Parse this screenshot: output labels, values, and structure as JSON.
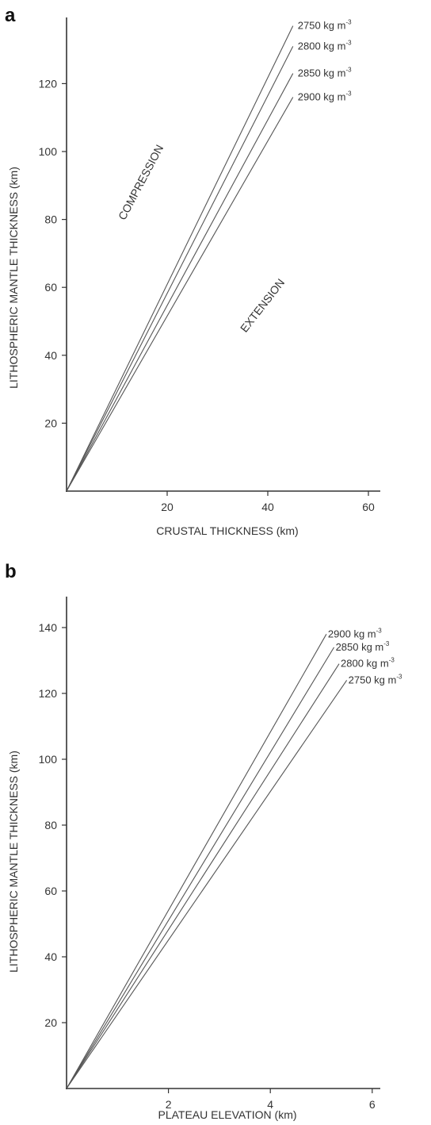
{
  "chart_data": [
    {
      "panel": "a",
      "type": "line",
      "xlabel": "CRUSTAL THICKNESS (km)",
      "ylabel": "LITHOSPHERIC MANTLE THICKNESS (km)",
      "xlim": [
        0,
        60
      ],
      "ylim": [
        0,
        140
      ],
      "xticks": [
        20,
        40,
        60
      ],
      "yticks": [
        20,
        40,
        60,
        80,
        100,
        120
      ],
      "annotations": [
        "COMPRESSION",
        "EXTENSION"
      ],
      "series": [
        {
          "name": "2750 kg m",
          "superscript": "-3",
          "x": [
            0,
            45
          ],
          "y": [
            0,
            137
          ]
        },
        {
          "name": "2800 kg m",
          "superscript": "-3",
          "x": [
            0,
            45
          ],
          "y": [
            0,
            131
          ]
        },
        {
          "name": "2850 kg m",
          "superscript": "-3",
          "x": [
            0,
            45
          ],
          "y": [
            0,
            123
          ]
        },
        {
          "name": "2900 kg m",
          "superscript": "-3",
          "x": [
            0,
            45
          ],
          "y": [
            0,
            116
          ]
        }
      ]
    },
    {
      "panel": "b",
      "type": "line",
      "xlabel": "PLATEAU ELEVATION (km)",
      "ylabel": "LITHOSPHERIC MANTLE THICKNESS (km)",
      "xlim": [
        0,
        6
      ],
      "ylim": [
        0,
        140
      ],
      "xticks": [
        2,
        4,
        6
      ],
      "yticks": [
        20,
        40,
        60,
        80,
        100,
        120,
        140
      ],
      "series": [
        {
          "name": "2900 kg m",
          "superscript": "-3",
          "x": [
            0,
            5.1
          ],
          "y": [
            0,
            138
          ]
        },
        {
          "name": "2850 kg m",
          "superscript": "-3",
          "x": [
            0,
            5.25
          ],
          "y": [
            0,
            134
          ]
        },
        {
          "name": "2800 kg m",
          "superscript": "-3",
          "x": [
            0,
            5.35
          ],
          "y": [
            0,
            129
          ]
        },
        {
          "name": "2750 kg m",
          "superscript": "-3",
          "x": [
            0,
            5.5
          ],
          "y": [
            0,
            124
          ]
        }
      ]
    }
  ]
}
